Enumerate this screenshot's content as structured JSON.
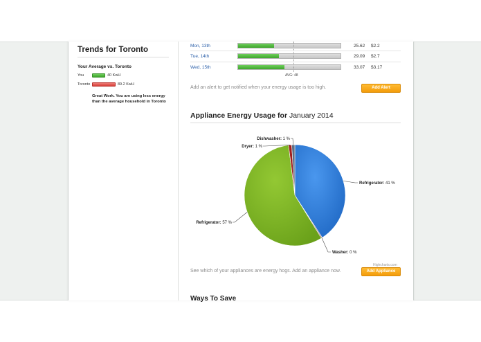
{
  "sidebar": {
    "title": "Trends for Toronto",
    "subtitle": "Your Average vs. Toronto",
    "rows": [
      {
        "label": "You",
        "value": "40 KwH",
        "color": "#4cb33a"
      },
      {
        "label": "Toronto",
        "value": "89.2 KwH",
        "color": "#dc4a43"
      }
    ],
    "message": "Great Work. You are using less energy than the average household in Toronto"
  },
  "daily": {
    "rows": [
      {
        "day": "Mon, 13th",
        "kwh": "25.62",
        "cost": "$2.2",
        "fill": 0.35
      },
      {
        "day": "Tue, 14th",
        "kwh": "29.09",
        "cost": "$2.7",
        "fill": 0.4
      },
      {
        "day": "Wed, 15th",
        "kwh": "33.07",
        "cost": "$3.17",
        "fill": 0.45
      }
    ],
    "avg_label": "AVG: 48",
    "alert_note": "Add an alert to get notified when your energy usage is too high.",
    "alert_button": "Add Alert"
  },
  "appliances": {
    "title_prefix": "Appliance Energy Usage for",
    "title_period": "January 2014",
    "note": "See which of your appliances are energy hogs. Add an appliance now.",
    "button": "Add Appliance",
    "credit": "Highcharts.com"
  },
  "ways": {
    "title": "Ways To Save"
  },
  "chart_data": {
    "type": "pie",
    "title": "",
    "series": [
      {
        "name": "Refrigerator",
        "value": 41,
        "label": "Refrigerator: 41 %",
        "color": "#2b7bd8"
      },
      {
        "name": "Washer",
        "value": 0.3,
        "label": "Washer: 0 %",
        "color": "#8d4653"
      },
      {
        "name": "Refrigerator",
        "value": 57,
        "label": "Refrigerator: 57 %",
        "color": "#7bb421"
      },
      {
        "name": "Dryer",
        "value": 1,
        "label": "Dryer: 1 %",
        "color": "#a01e1e"
      },
      {
        "name": "Dishwasher",
        "value": 1,
        "label": "Dishwasher: 1 %",
        "color": "#5e6f84"
      }
    ]
  }
}
